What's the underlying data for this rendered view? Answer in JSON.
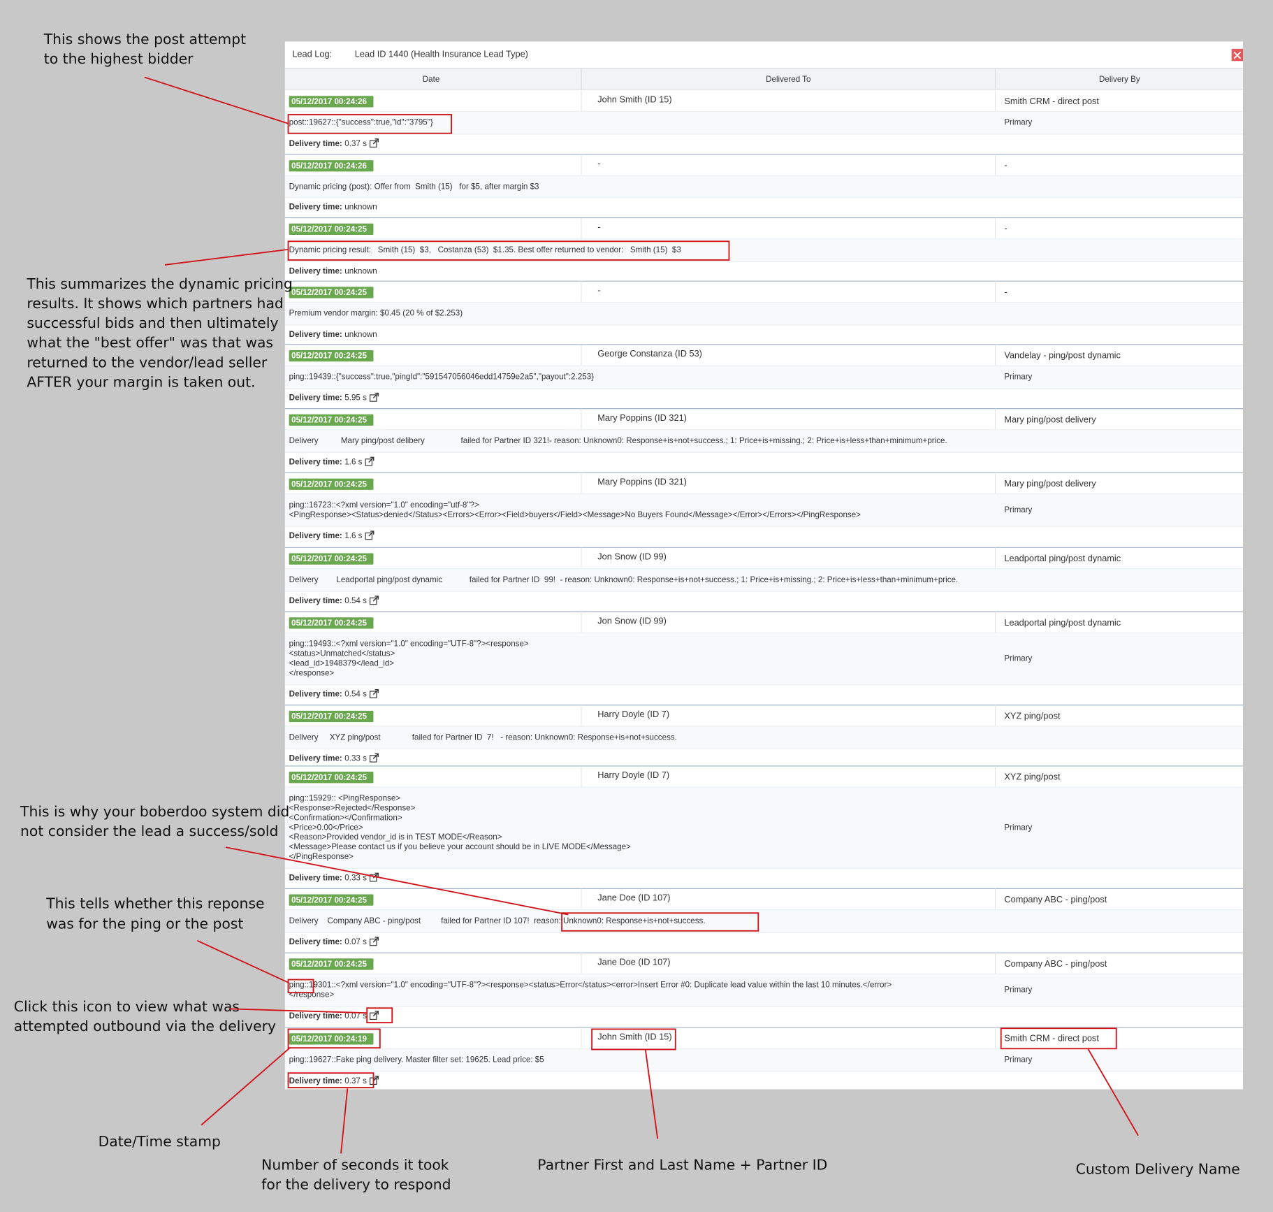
{
  "header": {
    "label": "Lead Log:",
    "title": "Lead ID 1440 (Health Insurance Lead Type)"
  },
  "columns": [
    "Date",
    "Delivered To",
    "Delivery By"
  ],
  "labels": {
    "delivery_time": "Delivery time:"
  },
  "entries": [
    {
      "date": "05/12/2017 00:24:26",
      "delivered_to": "John Smith (ID 15)",
      "delivery_by": "Smith CRM - direct post",
      "detail": [
        "post::19627::{\"success\":true,\"id\":\"3795\"}"
      ],
      "role": "Primary",
      "delivery_time": "0.37 s"
    },
    {
      "date": "05/12/2017 00:24:26",
      "delivered_to": "-",
      "delivery_by": "-",
      "detail": [
        "Dynamic pricing (post): Offer from  Smith (15)   for $5, after margin $3"
      ],
      "delivery_time": "unknown"
    },
    {
      "date": "05/12/2017 00:24:25",
      "delivered_to": "-",
      "delivery_by": "-",
      "detail": [
        "Dynamic pricing result:   Smith (15)  $3,   Costanza (53)  $1.35. Best offer returned to vendor:   Smith (15)  $3"
      ],
      "delivery_time": "unknown"
    },
    {
      "date": "05/12/2017 00:24:25",
      "delivered_to": "-",
      "delivery_by": "-",
      "detail": [
        "Premium vendor margin: $0.45 (20 % of $2.253)"
      ],
      "delivery_time": "unknown"
    },
    {
      "date": "05/12/2017 00:24:25",
      "delivered_to": "George Constanza (ID 53)",
      "delivery_by": "Vandelay - ping/post dynamic",
      "detail": [
        "ping::19439::{\"success\":true,\"pingId\":\"591547056046edd14759e2a5\",\"payout\":2.253}"
      ],
      "role": "Primary",
      "delivery_time": "5.95 s"
    },
    {
      "date": "05/12/2017 00:24:25",
      "delivered_to": "Mary Poppins (ID 321)",
      "delivery_by": "Mary ping/post delivery",
      "detail": [
        "Delivery          Mary ping/post delibery                failed for Partner ID 321!- reason: Unknown0: Response+is+not+success.; 1: Price+is+missing.; 2: Price+is+less+than+minimum+price."
      ],
      "delivery_time": "1.6 s"
    },
    {
      "date": "05/12/2017 00:24:25",
      "delivered_to": "Mary Poppins (ID 321)",
      "delivery_by": "Mary ping/post delivery",
      "detail": [
        "ping::16723::<?xml version=\"1.0\" encoding=\"utf-8\"?>",
        "<PingResponse><Status>denied</Status><Errors><Error><Field>buyers</Field><Message>No Buyers Found</Message></Error></Errors></PingResponse>"
      ],
      "role": "Primary",
      "delivery_time": "1.6 s"
    },
    {
      "date": "05/12/2017 00:24:25",
      "delivered_to": "Jon Snow (ID 99)",
      "delivery_by": "Leadportal ping/post dynamic",
      "detail": [
        "Delivery        Leadportal ping/post dynamic            failed for Partner ID  99!  - reason: Unknown0: Response+is+not+success.; 1: Price+is+missing.; 2: Price+is+less+than+minimum+price."
      ],
      "delivery_time": "0.54 s"
    },
    {
      "date": "05/12/2017 00:24:25",
      "delivered_to": "Jon Snow (ID 99)",
      "delivery_by": "Leadportal ping/post dynamic",
      "detail": [
        "ping::19493::<?xml version=\"1.0\" encoding=\"UTF-8\"?><response>",
        "<status>Unmatched</status>",
        "<lead_id>1948379</lead_id>",
        "</response>"
      ],
      "role": "Primary",
      "delivery_time": "0.54 s"
    },
    {
      "date": "05/12/2017 00:24:25",
      "delivered_to": "Harry Doyle (ID 7)",
      "delivery_by": "XYZ ping/post",
      "detail": [
        "Delivery     XYZ ping/post              failed for Partner ID  7!   - reason: Unknown0: Response+is+not+success."
      ],
      "delivery_time": "0.33 s"
    },
    {
      "date": "05/12/2017 00:24:25",
      "delivered_to": "Harry Doyle (ID 7)",
      "delivery_by": "XYZ ping/post",
      "detail": [
        "ping::15929:: <PingResponse>",
        "<Response>Rejected</Response>",
        "<Confirmation></Confirmation>",
        "<Price>0.00</Price>",
        "<Reason>Provided vendor_id is in TEST MODE</Reason>",
        "<Message>Please contact us if you believe your account should be in LIVE MODE</Message>",
        "</PingResponse>"
      ],
      "role": "Primary",
      "delivery_time": "0.33 s"
    },
    {
      "date": "05/12/2017 00:24:25",
      "delivered_to": "Jane Doe (ID 107)",
      "delivery_by": "Company ABC - ping/post",
      "detail": [
        "Delivery    Company ABC - ping/post         failed for Partner ID 107!  reason: Unknown0: Response+is+not+success."
      ],
      "delivery_time": "0.07 s"
    },
    {
      "date": "05/12/2017 00:24:25",
      "delivered_to": "Jane Doe (ID 107)",
      "delivery_by": "Company ABC - ping/post",
      "detail": [
        "ping::19301::<?xml version=\"1.0\" encoding=\"UTF-8\"?><response><status>Error</status><error>Insert Error #0: Duplicate lead value within the last 10 minutes.</error>",
        "</response>"
      ],
      "role": "Primary",
      "delivery_time": "0.07 s"
    },
    {
      "date": "05/12/2017 00:24:19",
      "delivered_to": "John Smith (ID 15)",
      "delivery_by": "Smith CRM - direct post",
      "detail": [
        "ping::19627::Fake ping delivery. Master filter set: 19625. Lead price: $5"
      ],
      "role": "Primary",
      "delivery_time": "0.37 s"
    }
  ],
  "annotations": [
    {
      "lines": [
        "This shows the post attempt",
        "to the highest bidder"
      ]
    },
    {
      "lines": [
        "This summarizes the dynamic pricing",
        "results. It shows which partners had",
        "successful bids and then ultimately",
        "what the \"best offer\" was that was",
        "returned to the vendor/lead seller",
        "AFTER your margin is taken out."
      ]
    },
    {
      "lines": [
        "This is why your boberdoo system did",
        "not consider the lead a success/sold"
      ]
    },
    {
      "lines": [
        "This tells whether this reponse",
        "was for the ping or the post"
      ]
    },
    {
      "lines": [
        "Click this icon to view what was",
        "attempted outbound via the delivery"
      ]
    },
    {
      "lines": [
        "Date/Time stamp"
      ]
    },
    {
      "lines": [
        "Number of seconds it took",
        "for the delivery to respond"
      ]
    },
    {
      "lines": [
        "Partner First and Last Name + Partner ID"
      ]
    },
    {
      "lines": [
        "Custom Delivery Name"
      ]
    }
  ]
}
